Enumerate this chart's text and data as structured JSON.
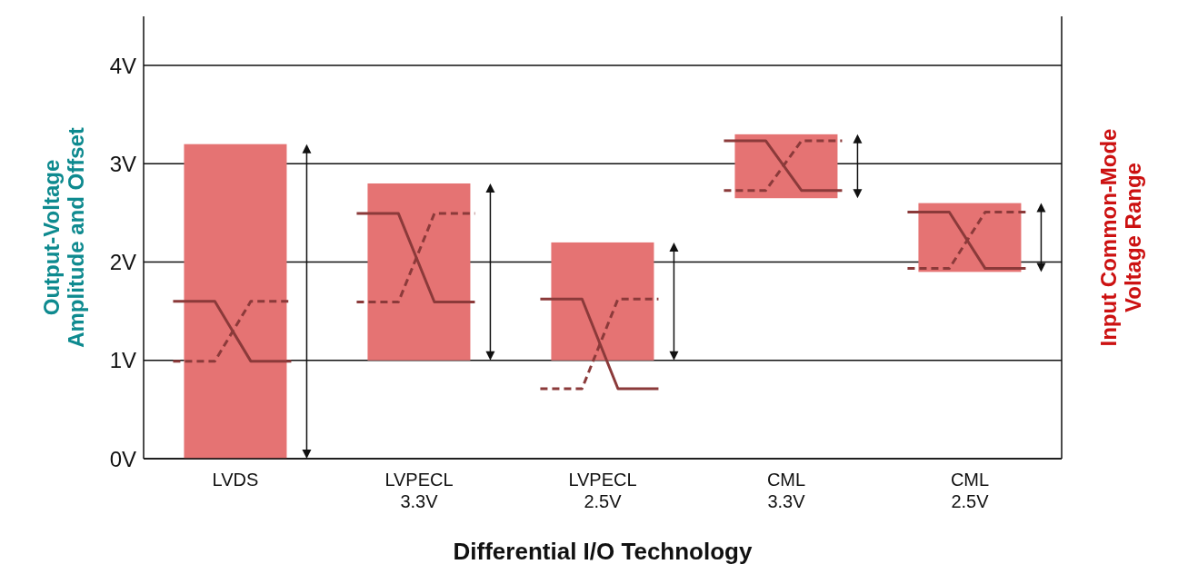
{
  "chart_data": {
    "type": "bar",
    "xlabel": "Differential I/O Technology",
    "ylabel": "Output-Voltage\nAmplitude and Offset",
    "y2label": "Input Common-Mode\nVoltage Range",
    "categories": [
      "LVDS",
      "LVPECL\n3.3V",
      "LVPECL\n2.5V",
      "CML\n3.3V",
      "CML\n2.5V"
    ],
    "base": [
      0,
      1,
      1,
      2.65,
      1.9
    ],
    "values": [
      3.2,
      1.8,
      1.2,
      0.65,
      0.7
    ],
    "color": "#e57373",
    "ylim": [
      0,
      4.5
    ],
    "yticks": [
      {
        "value": 0,
        "label": "0V"
      },
      {
        "value": 1,
        "label": "1V"
      },
      {
        "value": 2,
        "label": "2V"
      },
      {
        "value": 3,
        "label": "3V"
      },
      {
        "value": 4,
        "label": "4V"
      }
    ],
    "grid": "y"
  }
}
